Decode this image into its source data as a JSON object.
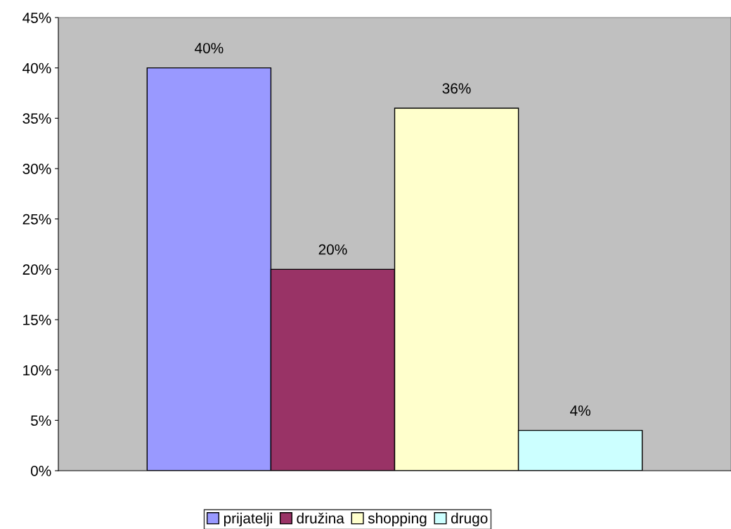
{
  "chart_data": {
    "type": "bar",
    "categories": [
      null
    ],
    "series": [
      {
        "name": "prijatelji",
        "color": "#9999ff",
        "values": [
          40
        ],
        "value_labels": [
          "40%"
        ]
      },
      {
        "name": "družina",
        "color": "#993366",
        "values": [
          20
        ],
        "value_labels": [
          "20%"
        ]
      },
      {
        "name": "shopping",
        "color": "#ffffcc",
        "values": [
          36
        ],
        "value_labels": [
          "36%"
        ]
      },
      {
        "name": "drugo",
        "color": "#ccffff",
        "values": [
          4
        ],
        "value_labels": [
          "4%"
        ]
      }
    ],
    "ylim": [
      0,
      45
    ],
    "yticks": [
      {
        "value": 0,
        "label": "0%"
      },
      {
        "value": 5,
        "label": "5%"
      },
      {
        "value": 10,
        "label": "10%"
      },
      {
        "value": 15,
        "label": "15%"
      },
      {
        "value": 20,
        "label": "20%"
      },
      {
        "value": 25,
        "label": "25%"
      },
      {
        "value": 30,
        "label": "30%"
      },
      {
        "value": 35,
        "label": "35%"
      },
      {
        "value": 40,
        "label": "40%"
      },
      {
        "value": 45,
        "label": "45%"
      }
    ],
    "legend": "bottom"
  }
}
